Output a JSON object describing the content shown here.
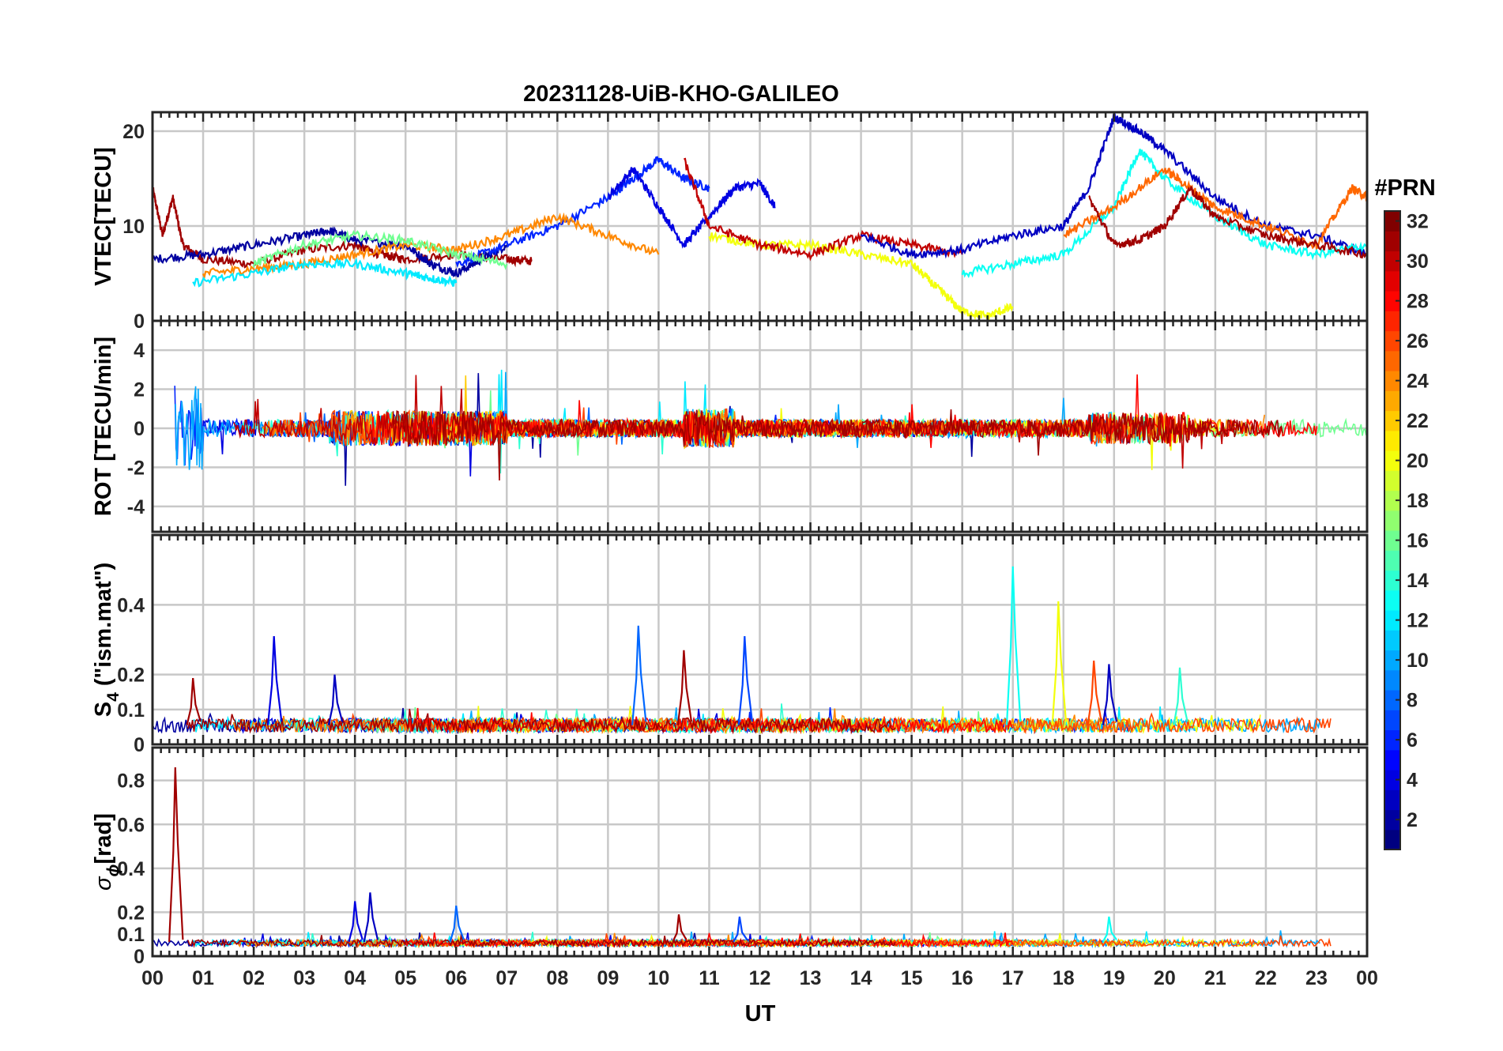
{
  "title": "20231128-UiB-KHO-GALILEO",
  "x_axis": {
    "label": "UT",
    "ticks": [
      "00",
      "01",
      "02",
      "03",
      "04",
      "05",
      "06",
      "07",
      "08",
      "09",
      "10",
      "11",
      "12",
      "13",
      "14",
      "15",
      "16",
      "17",
      "18",
      "19",
      "20",
      "21",
      "22",
      "23",
      "00"
    ],
    "range": [
      0,
      24
    ]
  },
  "colorbar": {
    "label": "#PRN",
    "ticks": [
      "2",
      "4",
      "6",
      "8",
      "10",
      "12",
      "14",
      "16",
      "18",
      "20",
      "22",
      "24",
      "26",
      "28",
      "30",
      "32"
    ],
    "range": [
      1,
      32
    ],
    "colormap": "jet"
  },
  "panels": [
    {
      "id": "vtec",
      "ylabel": "VTEC[TECU]",
      "ylim": [
        0,
        22
      ],
      "yticks": [
        0,
        10,
        20
      ]
    },
    {
      "id": "rot",
      "ylabel": "ROT [TECU/min]",
      "ylim": [
        -5.3,
        5.5
      ],
      "yticks": [
        -4,
        -2,
        0,
        2,
        4
      ]
    },
    {
      "id": "s4",
      "ylabel_main": "S",
      "ylabel_sub": "4",
      "ylabel_rest": " (\"ism.mat\")",
      "ylim": [
        0,
        0.6
      ],
      "yticks": [
        0,
        0.1,
        0.2,
        0.4
      ]
    },
    {
      "id": "sigma",
      "ylabel_main": "σ",
      "ylabel_sub": "ϕ",
      "ylabel_rest": "[rad]",
      "ylim": [
        0,
        0.95
      ],
      "yticks": [
        0,
        0.1,
        0.2,
        0.4,
        0.6,
        0.8
      ]
    }
  ],
  "chart_data": [
    {
      "type": "line",
      "panel": "vtec",
      "title": "20231128-UiB-KHO-GALILEO",
      "ylabel": "VTEC[TECU]",
      "xlabel": "UT",
      "ylim": [
        0,
        22
      ],
      "series": [
        {
          "prn": 31,
          "x": [
            0.0,
            0.2,
            0.4,
            0.6,
            1.0,
            2.0,
            3.0,
            4.0,
            4.5,
            5.0,
            6.0,
            7.0,
            7.5
          ],
          "y": [
            14,
            9,
            13,
            8,
            6.5,
            6,
            7.5,
            8,
            7,
            6.5,
            7,
            6.5,
            6.3
          ]
        },
        {
          "prn": 2,
          "x": [
            0.0,
            1.0,
            2.0,
            3.0,
            3.5,
            4.0,
            5.0,
            5.5,
            6.0,
            6.5,
            7.0
          ],
          "y": [
            6.5,
            7,
            8,
            9,
            9.5,
            8.5,
            8,
            6,
            5,
            6.5,
            8
          ]
        },
        {
          "prn": 6,
          "x": [
            6.0,
            7.0,
            8.0,
            9.0,
            9.5,
            10.0,
            10.5,
            11.0
          ],
          "y": [
            6,
            8,
            10,
            13,
            15,
            17,
            15,
            14
          ]
        },
        {
          "prn": 4,
          "x": [
            9.0,
            9.5,
            10.0,
            10.5,
            11.0,
            11.5,
            12.0,
            12.3
          ],
          "y": [
            13,
            16,
            12,
            8,
            11,
            14,
            14.5,
            12
          ]
        },
        {
          "prn": 24,
          "x": [
            1.0,
            2.0,
            3.0,
            4.0,
            5.0,
            6.0,
            7.0,
            8.0,
            9.0,
            10.0
          ],
          "y": [
            5,
            5.5,
            6,
            7,
            8,
            7.5,
            9,
            11,
            9,
            7
          ]
        },
        {
          "prn": 12,
          "x": [
            0.8,
            2.0,
            3.0,
            4.0,
            5.0,
            5.5,
            6.0
          ],
          "y": [
            4,
            5,
            6,
            6,
            5,
            4.5,
            4
          ]
        },
        {
          "prn": 16,
          "x": [
            2.0,
            3.0,
            4.0,
            5.0,
            6.0,
            7.0
          ],
          "y": [
            6,
            8,
            9,
            8.5,
            7,
            6
          ]
        },
        {
          "prn": 20,
          "x": [
            11.0,
            12.0,
            13.0,
            14.0,
            15.0,
            15.5,
            16.0,
            16.5,
            17.0
          ],
          "y": [
            9,
            8,
            8,
            7,
            6,
            3.5,
            1,
            0.5,
            1.5
          ]
        },
        {
          "prn": 30,
          "x": [
            10.5,
            11.0,
            12.0,
            13.0,
            14.0,
            15.0,
            16.0
          ],
          "y": [
            17,
            10,
            8,
            7,
            9,
            8,
            7
          ]
        },
        {
          "prn": 3,
          "x": [
            14.0,
            15.0,
            16.0,
            17.0,
            18.0,
            18.5,
            19.0,
            19.5,
            20.0,
            21.0,
            22.0,
            23.0,
            24.0
          ],
          "y": [
            9,
            7,
            7.5,
            9,
            10,
            14,
            21.5,
            20,
            18,
            13,
            10,
            9,
            7
          ]
        },
        {
          "prn": 13,
          "x": [
            16.0,
            17.0,
            18.0,
            19.0,
            19.5,
            20.0,
            21.0,
            22.0,
            23.0,
            24.0
          ],
          "y": [
            5,
            6,
            7,
            12,
            18,
            15,
            11,
            8,
            7,
            8
          ]
        },
        {
          "prn": 25,
          "x": [
            18.0,
            19.0,
            20.0,
            20.5,
            21.0,
            22.0,
            23.0,
            23.7,
            24.0
          ],
          "y": [
            9,
            12,
            16,
            14,
            12,
            10,
            8,
            14,
            13
          ]
        },
        {
          "prn": 31,
          "x": [
            18.5,
            19.0,
            19.5,
            20.0,
            20.5,
            21.0,
            22.0,
            23.0,
            24.0
          ],
          "y": [
            13,
            8,
            8.5,
            10,
            14,
            11,
            9,
            8,
            7
          ]
        }
      ]
    },
    {
      "type": "line",
      "panel": "rot",
      "ylabel": "ROT [TECU/min]",
      "ylim": [
        -5.3,
        5.5
      ],
      "notes_visible": "dense noisy ROT traces, mostly within ±1 TECU/min, spikes up to about ±5 near 00-01 UT and 10-11 UT"
    },
    {
      "type": "line",
      "panel": "s4",
      "ylabel": "S4 (\"ism.mat\")",
      "ylim": [
        0,
        0.6
      ],
      "peaks": [
        {
          "x": 0.8,
          "y": 0.19
        },
        {
          "x": 2.4,
          "y": 0.31
        },
        {
          "x": 3.6,
          "y": 0.2
        },
        {
          "x": 9.6,
          "y": 0.34
        },
        {
          "x": 10.5,
          "y": 0.27
        },
        {
          "x": 11.7,
          "y": 0.31
        },
        {
          "x": 17.0,
          "y": 0.51
        },
        {
          "x": 17.9,
          "y": 0.41
        },
        {
          "x": 18.6,
          "y": 0.24
        },
        {
          "x": 18.9,
          "y": 0.23
        },
        {
          "x": 20.3,
          "y": 0.22
        }
      ]
    },
    {
      "type": "line",
      "panel": "sigma",
      "ylabel": "σϕ[rad]",
      "ylim": [
        0,
        0.95
      ],
      "peaks": [
        {
          "x": 0.45,
          "y": 0.86
        },
        {
          "x": 4.0,
          "y": 0.25
        },
        {
          "x": 4.3,
          "y": 0.29
        },
        {
          "x": 6.0,
          "y": 0.23
        },
        {
          "x": 10.4,
          "y": 0.19
        },
        {
          "x": 11.6,
          "y": 0.18
        },
        {
          "x": 18.9,
          "y": 0.18
        }
      ]
    }
  ]
}
